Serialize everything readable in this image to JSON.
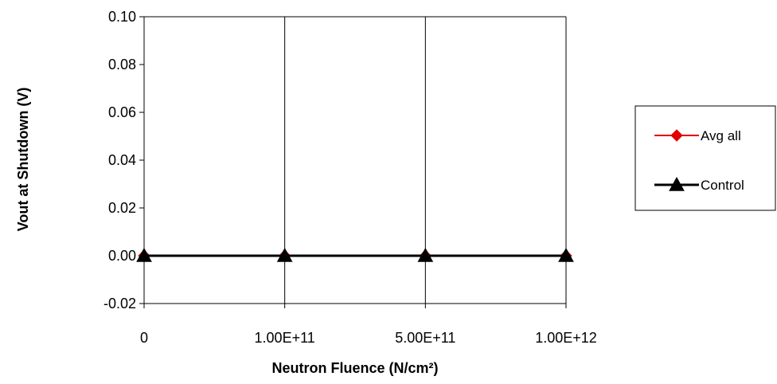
{
  "chart_data": {
    "type": "line",
    "title": "",
    "xlabel": "Neutron Fluence (N/cm²)",
    "ylabel": "Vout at Shutdown (V)",
    "categories": [
      "0",
      "1.00E+11",
      "5.00E+11",
      "1.00E+12"
    ],
    "ylim": [
      -0.02,
      0.1
    ],
    "yticks": [
      "-0.02",
      "0.00",
      "0.02",
      "0.04",
      "0.06",
      "0.08",
      "0.10"
    ],
    "ytick_values": [
      -0.02,
      0.0,
      0.02,
      0.04,
      0.06,
      0.08,
      0.1
    ],
    "grid": "vertical",
    "legend_position": "right",
    "series": [
      {
        "name": "Avg all",
        "values": [
          0.0,
          0.0,
          0.0,
          0.0
        ],
        "color": "#e00000",
        "marker": "diamond"
      },
      {
        "name": "Control",
        "values": [
          0.0,
          0.0,
          0.0,
          0.0
        ],
        "color": "#000000",
        "marker": "triangle"
      }
    ]
  }
}
